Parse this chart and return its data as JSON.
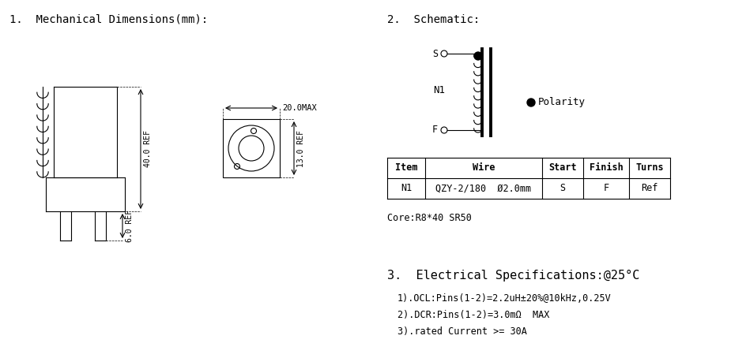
{
  "bg_color": "#ffffff",
  "section1_title": "1.  Mechanical Dimensions(mm):",
  "section2_title": "2.  Schematic:",
  "section3_title": "3.  Electrical Specifications:@25°C",
  "spec1": "1).OCL:Pins(1-2)=2.2uH±20%@10kHz,0.25V",
  "spec2": "2).DCR:Pins(1-2)=3.0mΩ  MAX",
  "spec3": "3).rated Current >= 30A",
  "core_note": "Core:R8*40 SR50",
  "dim_40": "40.0 REF",
  "dim_6": "6.0 REF",
  "dim_20": "20.0MAX",
  "dim_13": "13.0 REF",
  "table_headers": [
    "Item",
    "Wire",
    "Start",
    "Finish",
    "Turns"
  ],
  "table_row": [
    "N1",
    "QZY-2/180  Ø2.0mm",
    "S",
    "F",
    "Ref"
  ],
  "polarity_label": "Polarity",
  "N1_label": "N1",
  "S_label": "S",
  "F_label": "F"
}
